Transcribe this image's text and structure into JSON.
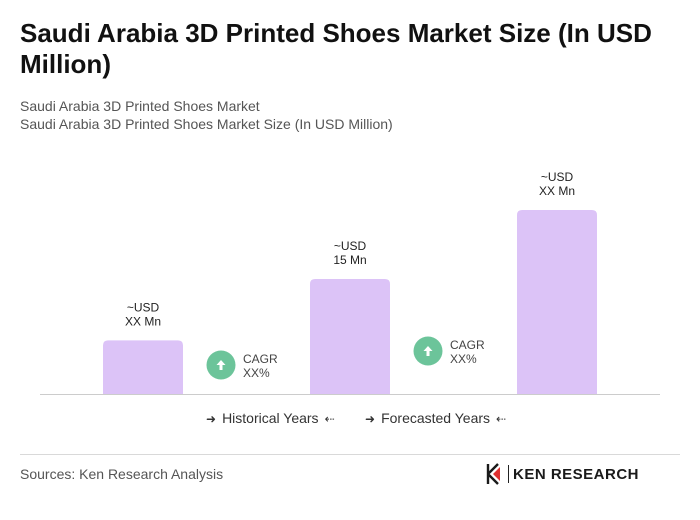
{
  "title": "Saudi Arabia 3D Printed Shoes Market Size (In USD Million)",
  "subtitle_1": "Saudi Arabia 3D Printed Shoes Market",
  "subtitle_2": "Saudi Arabia 3D Printed Shoes Market Size (In USD Million)",
  "colors": {
    "bar": "#dcc3f7",
    "cagr_circle": "#6cc49a",
    "axis": "#cccccc"
  },
  "chart_data": {
    "type": "bar",
    "categories": [
      "",
      "",
      ""
    ],
    "values": [
      7,
      15,
      24
    ],
    "ylim": [
      0,
      30
    ],
    "grid": false,
    "data_labels": [
      {
        "line1": "~USD",
        "line2": "XX Mn"
      },
      {
        "line1": "~USD",
        "line2": "15 Mn"
      },
      {
        "line1": "~USD",
        "line2": "XX Mn"
      }
    ],
    "annotations": [
      {
        "icon": "up-arrow-icon",
        "line1": "CAGR",
        "line2": "XX%"
      },
      {
        "icon": "up-arrow-icon",
        "line1": "CAGR",
        "line2": "XX%"
      }
    ],
    "legend": {
      "placement": "bottom",
      "items": [
        "Historical Years",
        "Forecasted Years"
      ]
    }
  },
  "source": "Sources: Ken Research Analysis",
  "brand": {
    "name": "KEN RESEARCH",
    "icon": "ken-logo-icon"
  }
}
